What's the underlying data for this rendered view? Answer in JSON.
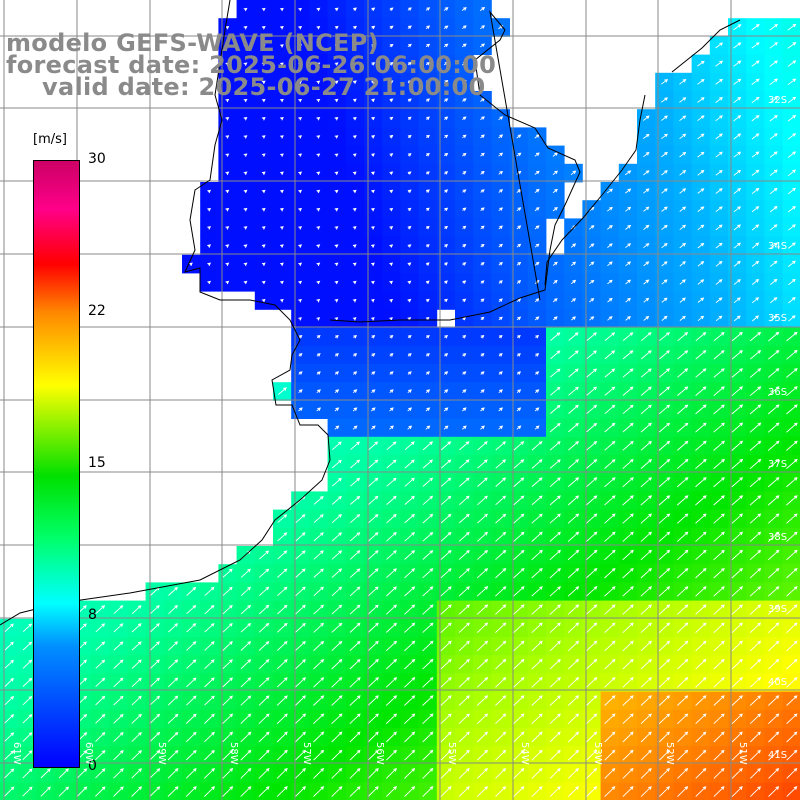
{
  "title": {
    "line1": "modelo GEFS-WAVE (NCEP)",
    "line2": "forecast date: 2025-06-26 06:00:00",
    "line3": "valid date: 2025-06-27 21:00:00"
  },
  "colorbar": {
    "unit": "[m/s]",
    "ticks": [
      "30",
      "22",
      "15",
      "8",
      "0"
    ],
    "colors": [
      "#0000ff",
      "#0090ff",
      "#00ffff",
      "#00ff66",
      "#00e000",
      "#ffff00",
      "#ff8800",
      "#ff0000",
      "#ff0088",
      "#cc0066"
    ]
  },
  "lat_labels": [
    "32S",
    "34S",
    "35S",
    "36S",
    "37S",
    "38S",
    "39S",
    "40S",
    "41S"
  ],
  "lon_labels": [
    "61W",
    "60W",
    "59W",
    "58W",
    "57W",
    "56W",
    "55W",
    "54W",
    "53W",
    "52W",
    "51W"
  ],
  "colors": {
    "land": "#ffffff",
    "grid": "#888888",
    "coast": "#000000",
    "arrow": "#ffffff"
  }
}
